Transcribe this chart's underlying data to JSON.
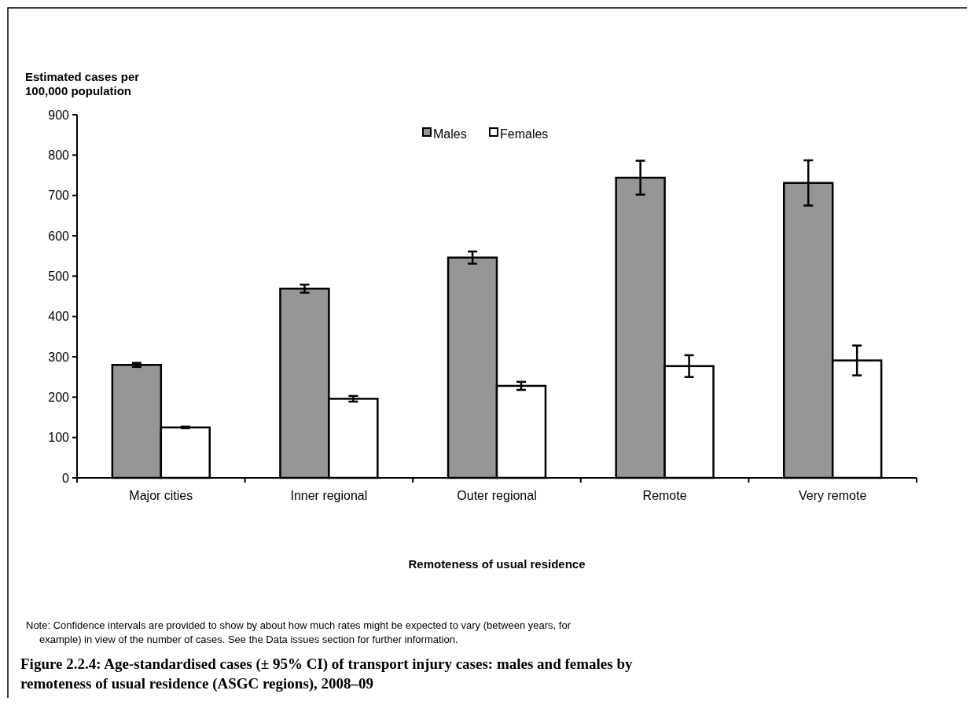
{
  "chart_data": {
    "type": "bar",
    "title": "Figure 2.2.4: Age-standardised cases (± 95% CI) of transport injury cases: males and females by remoteness of usual residence (ASGC regions), 2008–09",
    "ylabel": "Estimated cases per 100,000 population",
    "xlabel": "Remoteness of usual residence",
    "annotations": [
      "Note: Confidence intervals are provided to show by about how much rates might be expected to vary (between years, for example) in view of the number of cases. See the Data issues section for further information."
    ],
    "categories": [
      "Major cities",
      "Inner regional",
      "Outer regional",
      "Remote",
      "Very remote"
    ],
    "series": [
      {
        "name": "Males",
        "color": "#969696",
        "values": [
          280,
          469,
          546,
          744,
          731
        ],
        "errors": [
          5,
          10,
          15,
          42,
          56
        ]
      },
      {
        "name": "Females",
        "color": "#ffffff",
        "values": [
          125,
          196,
          228,
          277,
          291
        ],
        "errors": [
          2,
          7,
          10,
          27,
          37
        ]
      }
    ],
    "ylim": [
      0,
      900
    ],
    "yticks": [
      0,
      100,
      200,
      300,
      400,
      500,
      600,
      700,
      800,
      900
    ],
    "grid": false,
    "legend": "top"
  }
}
